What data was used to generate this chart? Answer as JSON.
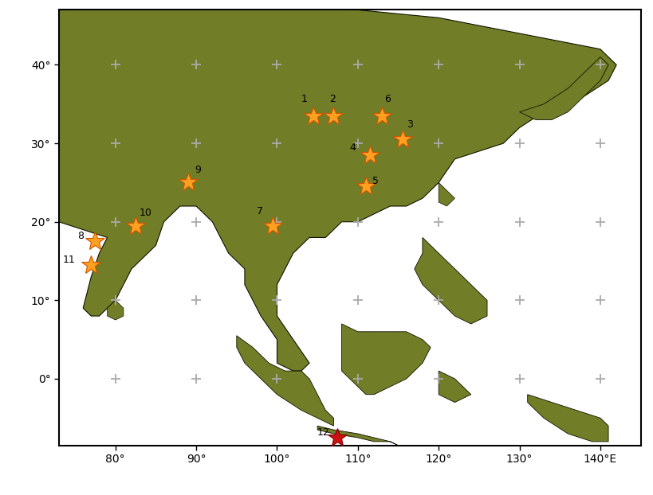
{
  "lon_min": 73,
  "lon_max": 145,
  "lat_min": -8.5,
  "lat_max": 47,
  "xticks": [
    80,
    90,
    100,
    110,
    120,
    130,
    140
  ],
  "yticks": [
    0,
    10,
    20,
    30,
    40
  ],
  "land_color": "#727d27",
  "ocean_color": "#ffffff",
  "border_color": "#111100",
  "grid_color": "#aaaaaa",
  "star_color_orange": "#FFA020",
  "star_color_red": "#CC1111",
  "star_edge_orange": "#cc5500",
  "star_edge_red": "#880000",
  "star_size": 18,
  "stars": [
    {
      "id": "1",
      "lon": 104.5,
      "lat": 33.5,
      "color": "orange",
      "ldx": -1.5,
      "ldy": 1.5,
      "ha": "left"
    },
    {
      "id": "2",
      "lon": 107.0,
      "lat": 33.5,
      "color": "orange",
      "ldx": -0.5,
      "ldy": 1.5,
      "ha": "left"
    },
    {
      "id": "6",
      "lon": 113.0,
      "lat": 33.5,
      "color": "orange",
      "ldx": 0.3,
      "ldy": 1.5,
      "ha": "left"
    },
    {
      "id": "3",
      "lon": 115.5,
      "lat": 30.5,
      "color": "orange",
      "ldx": 0.5,
      "ldy": 1.2,
      "ha": "left"
    },
    {
      "id": "4",
      "lon": 111.5,
      "lat": 28.5,
      "color": "orange",
      "ldx": -2.5,
      "ldy": 0.3,
      "ha": "left"
    },
    {
      "id": "5",
      "lon": 111.0,
      "lat": 24.5,
      "color": "orange",
      "ldx": 0.8,
      "ldy": 0.0,
      "ha": "left"
    },
    {
      "id": "9",
      "lon": 89.0,
      "lat": 25.0,
      "color": "orange",
      "ldx": 0.8,
      "ldy": 1.0,
      "ha": "left"
    },
    {
      "id": "7",
      "lon": 99.5,
      "lat": 19.5,
      "color": "orange",
      "ldx": -2.0,
      "ldy": 1.2,
      "ha": "left"
    },
    {
      "id": "10",
      "lon": 82.5,
      "lat": 19.5,
      "color": "orange",
      "ldx": 0.5,
      "ldy": 1.0,
      "ha": "left"
    },
    {
      "id": "8",
      "lon": 77.5,
      "lat": 17.5,
      "color": "orange",
      "ldx": -2.2,
      "ldy": 0.0,
      "ha": "left"
    },
    {
      "id": "11",
      "lon": 77.0,
      "lat": 14.5,
      "color": "orange",
      "ldx": -3.5,
      "ldy": 0.0,
      "ha": "left"
    },
    {
      "id": "12",
      "lon": 107.5,
      "lat": -7.5,
      "color": "red",
      "ldx": -2.5,
      "ldy": 0.0,
      "ha": "left"
    }
  ],
  "cross_lons": [
    80,
    90,
    100,
    110,
    120,
    130,
    140
  ],
  "cross_lats": [
    0,
    10,
    20,
    30,
    40
  ],
  "figsize": [
    8.2,
    6.22
  ],
  "dpi": 100
}
